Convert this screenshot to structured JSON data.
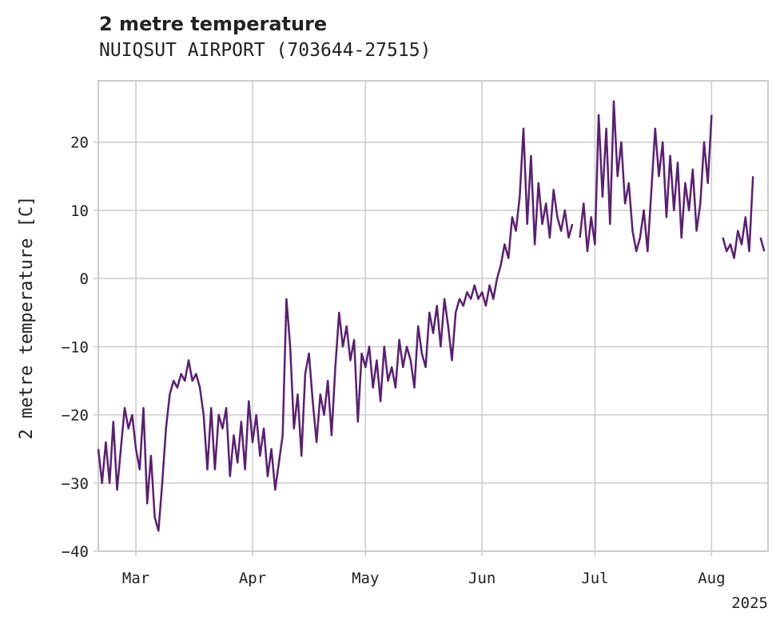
{
  "chart_data": {
    "type": "line",
    "title": "2 metre temperature",
    "subtitle": "NUIQSUT AIRPORT (703644-27515)",
    "xlabel": "",
    "ylabel": "2 metre temperature [C]",
    "ylim": [
      -40,
      29
    ],
    "xlim": [
      "2025-02-19",
      "2025-08-16"
    ],
    "x_ticks": [
      {
        "date": "2025-03-01",
        "label": "Mar"
      },
      {
        "date": "2025-04-01",
        "label": "Apr"
      },
      {
        "date": "2025-05-01",
        "label": "May"
      },
      {
        "date": "2025-06-01",
        "label": "Jun"
      },
      {
        "date": "2025-07-01",
        "label": "Jul"
      },
      {
        "date": "2025-08-01",
        "label": "Aug"
      }
    ],
    "x_year_label": "2025",
    "y_ticks": [
      -40,
      -30,
      -20,
      -10,
      0,
      10,
      20
    ],
    "grid": true,
    "line_color": "#5a1f72",
    "series": [
      {
        "name": "",
        "segments": [
          [
            [
              "2025-02-19",
              -25
            ],
            [
              "2025-02-20",
              -30
            ],
            [
              "2025-02-21",
              -24
            ],
            [
              "2025-02-22",
              -30
            ],
            [
              "2025-02-23",
              -21
            ],
            [
              "2025-02-24",
              -31
            ],
            [
              "2025-02-25",
              -25
            ],
            [
              "2025-02-26",
              -19
            ],
            [
              "2025-02-27",
              -22
            ],
            [
              "2025-02-28",
              -20
            ],
            [
              "2025-03-01",
              -25
            ],
            [
              "2025-03-02",
              -28
            ],
            [
              "2025-03-03",
              -19
            ],
            [
              "2025-03-04",
              -33
            ],
            [
              "2025-03-05",
              -26
            ],
            [
              "2025-03-06",
              -35
            ],
            [
              "2025-03-07",
              -37
            ],
            [
              "2025-03-08",
              -30
            ],
            [
              "2025-03-09",
              -22
            ],
            [
              "2025-03-10",
              -17
            ],
            [
              "2025-03-11",
              -15
            ],
            [
              "2025-03-12",
              -16
            ],
            [
              "2025-03-13",
              -14
            ],
            [
              "2025-03-14",
              -15
            ],
            [
              "2025-03-15",
              -12
            ],
            [
              "2025-03-16",
              -15
            ],
            [
              "2025-03-17",
              -14
            ],
            [
              "2025-03-18",
              -16
            ],
            [
              "2025-03-19",
              -20
            ],
            [
              "2025-03-20",
              -28
            ],
            [
              "2025-03-21",
              -19
            ],
            [
              "2025-03-22",
              -28
            ],
            [
              "2025-03-23",
              -20
            ],
            [
              "2025-03-24",
              -22
            ],
            [
              "2025-03-25",
              -19
            ],
            [
              "2025-03-26",
              -29
            ],
            [
              "2025-03-27",
              -23
            ],
            [
              "2025-03-28",
              -27
            ],
            [
              "2025-03-29",
              -21
            ],
            [
              "2025-03-30",
              -28
            ],
            [
              "2025-03-31",
              -18
            ],
            [
              "2025-04-01",
              -24
            ],
            [
              "2025-04-02",
              -20
            ],
            [
              "2025-04-03",
              -26
            ],
            [
              "2025-04-04",
              -22
            ],
            [
              "2025-04-05",
              -29
            ],
            [
              "2025-04-06",
              -25
            ],
            [
              "2025-04-07",
              -31
            ],
            [
              "2025-04-08",
              -27
            ],
            [
              "2025-04-09",
              -23
            ],
            [
              "2025-04-10",
              -3
            ],
            [
              "2025-04-11",
              -10
            ],
            [
              "2025-04-12",
              -22
            ],
            [
              "2025-04-13",
              -17
            ],
            [
              "2025-04-14",
              -26
            ],
            [
              "2025-04-15",
              -14
            ],
            [
              "2025-04-16",
              -11
            ],
            [
              "2025-04-17",
              -18
            ],
            [
              "2025-04-18",
              -24
            ],
            [
              "2025-04-19",
              -17
            ],
            [
              "2025-04-20",
              -20
            ],
            [
              "2025-04-21",
              -15
            ],
            [
              "2025-04-22",
              -23
            ],
            [
              "2025-04-23",
              -13
            ],
            [
              "2025-04-24",
              -5
            ],
            [
              "2025-04-25",
              -10
            ],
            [
              "2025-04-26",
              -7
            ],
            [
              "2025-04-27",
              -12
            ],
            [
              "2025-04-28",
              -9
            ],
            [
              "2025-04-29",
              -21
            ],
            [
              "2025-04-30",
              -11
            ],
            [
              "2025-05-01",
              -13
            ],
            [
              "2025-05-02",
              -10
            ],
            [
              "2025-05-03",
              -16
            ],
            [
              "2025-05-04",
              -12
            ],
            [
              "2025-05-05",
              -18
            ],
            [
              "2025-05-06",
              -10
            ],
            [
              "2025-05-07",
              -15
            ],
            [
              "2025-05-08",
              -13
            ],
            [
              "2025-05-09",
              -16
            ],
            [
              "2025-05-10",
              -9
            ],
            [
              "2025-05-11",
              -13
            ],
            [
              "2025-05-12",
              -10
            ],
            [
              "2025-05-13",
              -12
            ],
            [
              "2025-05-14",
              -16
            ],
            [
              "2025-05-15",
              -7
            ],
            [
              "2025-05-16",
              -11
            ],
            [
              "2025-05-17",
              -13
            ],
            [
              "2025-05-18",
              -5
            ],
            [
              "2025-05-19",
              -8
            ],
            [
              "2025-05-20",
              -4
            ],
            [
              "2025-05-21",
              -10
            ],
            [
              "2025-05-22",
              -3
            ],
            [
              "2025-05-23",
              -7
            ],
            [
              "2025-05-24",
              -12
            ],
            [
              "2025-05-25",
              -5
            ],
            [
              "2025-05-26",
              -3
            ],
            [
              "2025-05-27",
              -4
            ],
            [
              "2025-05-28",
              -2
            ],
            [
              "2025-05-29",
              -3
            ],
            [
              "2025-05-30",
              -1
            ],
            [
              "2025-05-31",
              -3
            ],
            [
              "2025-06-01",
              -2
            ],
            [
              "2025-06-02",
              -4
            ],
            [
              "2025-06-03",
              -1
            ],
            [
              "2025-06-04",
              -3
            ],
            [
              "2025-06-05",
              0
            ],
            [
              "2025-06-06",
              2
            ],
            [
              "2025-06-07",
              5
            ],
            [
              "2025-06-08",
              3
            ],
            [
              "2025-06-09",
              9
            ],
            [
              "2025-06-10",
              7
            ],
            [
              "2025-06-11",
              12
            ],
            [
              "2025-06-12",
              22
            ],
            [
              "2025-06-13",
              8
            ],
            [
              "2025-06-14",
              18
            ],
            [
              "2025-06-15",
              5
            ],
            [
              "2025-06-16",
              14
            ],
            [
              "2025-06-17",
              8
            ],
            [
              "2025-06-18",
              11
            ],
            [
              "2025-06-19",
              6
            ],
            [
              "2025-06-20",
              13
            ],
            [
              "2025-06-21",
              9
            ],
            [
              "2025-06-22",
              7
            ],
            [
              "2025-06-23",
              10
            ],
            [
              "2025-06-24",
              6
            ],
            [
              "2025-06-25",
              8
            ]
          ],
          [
            [
              "2025-06-27",
              6
            ],
            [
              "2025-06-28",
              11
            ],
            [
              "2025-06-29",
              4
            ],
            [
              "2025-06-30",
              9
            ],
            [
              "2025-07-01",
              5
            ],
            [
              "2025-07-02",
              24
            ],
            [
              "2025-07-03",
              12
            ],
            [
              "2025-07-04",
              22
            ],
            [
              "2025-07-05",
              8
            ],
            [
              "2025-07-06",
              26
            ],
            [
              "2025-07-07",
              15
            ],
            [
              "2025-07-08",
              20
            ],
            [
              "2025-07-09",
              11
            ],
            [
              "2025-07-10",
              14
            ],
            [
              "2025-07-11",
              7
            ],
            [
              "2025-07-12",
              4
            ],
            [
              "2025-07-13",
              6
            ],
            [
              "2025-07-14",
              10
            ],
            [
              "2025-07-15",
              4
            ],
            [
              "2025-07-16",
              13
            ],
            [
              "2025-07-17",
              22
            ],
            [
              "2025-07-18",
              15
            ],
            [
              "2025-07-19",
              20
            ],
            [
              "2025-07-20",
              9
            ],
            [
              "2025-07-21",
              18
            ],
            [
              "2025-07-22",
              10
            ],
            [
              "2025-07-23",
              17
            ],
            [
              "2025-07-24",
              6
            ],
            [
              "2025-07-25",
              14
            ],
            [
              "2025-07-26",
              10
            ],
            [
              "2025-07-27",
              16
            ],
            [
              "2025-07-28",
              7
            ],
            [
              "2025-07-29",
              11
            ],
            [
              "2025-07-30",
              20
            ],
            [
              "2025-07-31",
              14
            ],
            [
              "2025-08-01",
              24
            ]
          ],
          [
            [
              "2025-08-04",
              6
            ],
            [
              "2025-08-05",
              4
            ],
            [
              "2025-08-06",
              5
            ],
            [
              "2025-08-07",
              3
            ],
            [
              "2025-08-08",
              7
            ],
            [
              "2025-08-09",
              5
            ],
            [
              "2025-08-10",
              9
            ],
            [
              "2025-08-11",
              4
            ],
            [
              "2025-08-12",
              15
            ]
          ],
          [
            [
              "2025-08-14",
              6
            ],
            [
              "2025-08-15",
              4
            ]
          ]
        ]
      }
    ]
  }
}
